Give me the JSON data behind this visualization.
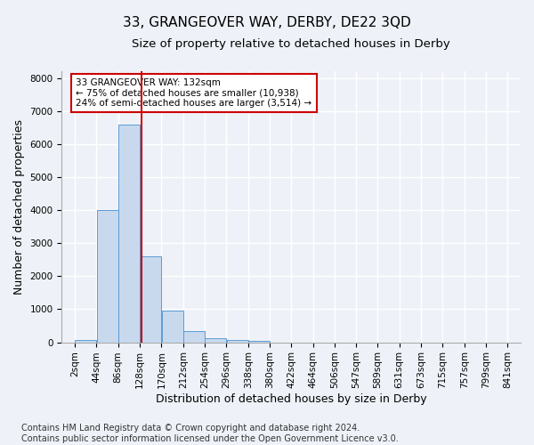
{
  "title": "33, GRANGEOVER WAY, DERBY, DE22 3QD",
  "subtitle": "Size of property relative to detached houses in Derby",
  "xlabel": "Distribution of detached houses by size in Derby",
  "ylabel": "Number of detached properties",
  "footnote": "Contains HM Land Registry data © Crown copyright and database right 2024.\nContains public sector information licensed under the Open Government Licence v3.0.",
  "bin_edges": [
    2,
    44,
    86,
    128,
    170,
    212,
    254,
    296,
    338,
    380,
    422,
    464,
    506,
    547,
    589,
    631,
    673,
    715,
    757,
    799,
    841
  ],
  "bar_heights": [
    60,
    4000,
    6600,
    2600,
    950,
    330,
    120,
    80,
    50,
    0,
    0,
    0,
    0,
    0,
    0,
    0,
    0,
    0,
    0,
    0
  ],
  "bar_color": "#c8d9ee",
  "bar_edge_color": "#5b9bd5",
  "property_size": 132,
  "vline_color": "#cc0000",
  "annotation_text": "33 GRANGEOVER WAY: 132sqm\n← 75% of detached houses are smaller (10,938)\n24% of semi-detached houses are larger (3,514) →",
  "annotation_box_color": "#cc0000",
  "ylim": [
    0,
    8200
  ],
  "yticks": [
    0,
    1000,
    2000,
    3000,
    4000,
    5000,
    6000,
    7000,
    8000
  ],
  "background_color": "#eef2f8",
  "grid_color": "#ffffff",
  "title_fontsize": 11,
  "subtitle_fontsize": 9.5,
  "axis_label_fontsize": 9,
  "tick_fontsize": 7.5,
  "footnote_fontsize": 7
}
